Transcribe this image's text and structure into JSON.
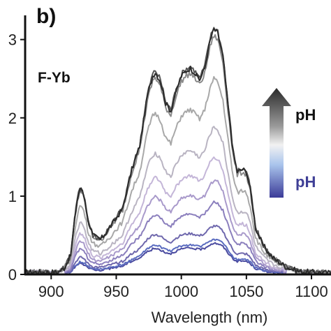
{
  "panel_label": "b)",
  "sample_label": "F-Yb",
  "gradient_legend": {
    "top_label": "pH",
    "bottom_label": "pH",
    "top_color": "#111111",
    "bottom_color": "#3f3f96"
  },
  "chart_data": {
    "type": "line",
    "xlabel": "Wavelength (nm)",
    "ylabel": "",
    "xlim": [
      880,
      1115
    ],
    "ylim": [
      0,
      3.3
    ],
    "x_ticks": [
      900,
      950,
      1000,
      1050,
      1100
    ],
    "x_tick_labels": [
      "900",
      "950",
      "1000",
      "1050",
      "1100"
    ],
    "y_ticks": [
      0,
      1,
      2,
      3
    ],
    "y_tick_labels": [
      "0",
      "1",
      "2",
      "3"
    ],
    "grid": false,
    "shape_x": [
      880,
      905,
      910,
      915,
      918,
      920,
      922,
      924,
      926,
      928,
      932,
      938,
      945,
      955,
      962,
      968,
      974,
      978,
      980,
      984,
      988,
      992,
      995,
      1000,
      1004,
      1007,
      1010,
      1014,
      1018,
      1022,
      1025,
      1028,
      1032,
      1036,
      1040,
      1043,
      1047,
      1050,
      1053,
      1057,
      1062,
      1066,
      1070,
      1080,
      1090,
      1100,
      1115
    ],
    "shape_y": [
      0.03,
      0.03,
      0.08,
      0.25,
      0.7,
      0.95,
      1.1,
      1.08,
      0.95,
      0.72,
      0.5,
      0.45,
      0.6,
      0.85,
      1.35,
      1.65,
      2.3,
      2.55,
      2.6,
      2.48,
      2.2,
      2.1,
      2.3,
      2.55,
      2.62,
      2.65,
      2.6,
      2.5,
      2.65,
      3.0,
      3.15,
      3.1,
      2.8,
      2.15,
      1.55,
      1.32,
      1.35,
      1.32,
      1.1,
      0.6,
      0.4,
      0.3,
      0.22,
      0.1,
      0.04,
      0.03,
      0.02
    ],
    "series": [
      {
        "peak": 3.13,
        "color": "#2b2b2b"
      },
      {
        "peak": 3.16,
        "color": "#555555"
      },
      {
        "peak": 3.05,
        "color": "#8a8a8a"
      },
      {
        "peak": 2.5,
        "color": "#a8a8a8"
      },
      {
        "peak": 1.88,
        "color": "#b9b4c2"
      },
      {
        "peak": 1.5,
        "color": "#c4b6d8"
      },
      {
        "peak": 1.2,
        "color": "#a99acb"
      },
      {
        "peak": 0.92,
        "color": "#8b7fbd"
      },
      {
        "peak": 0.62,
        "color": "#6f68ad"
      },
      {
        "peak": 0.45,
        "color": "#5a6cc0"
      },
      {
        "peak": 0.4,
        "color": "#4b4ba0"
      }
    ]
  }
}
